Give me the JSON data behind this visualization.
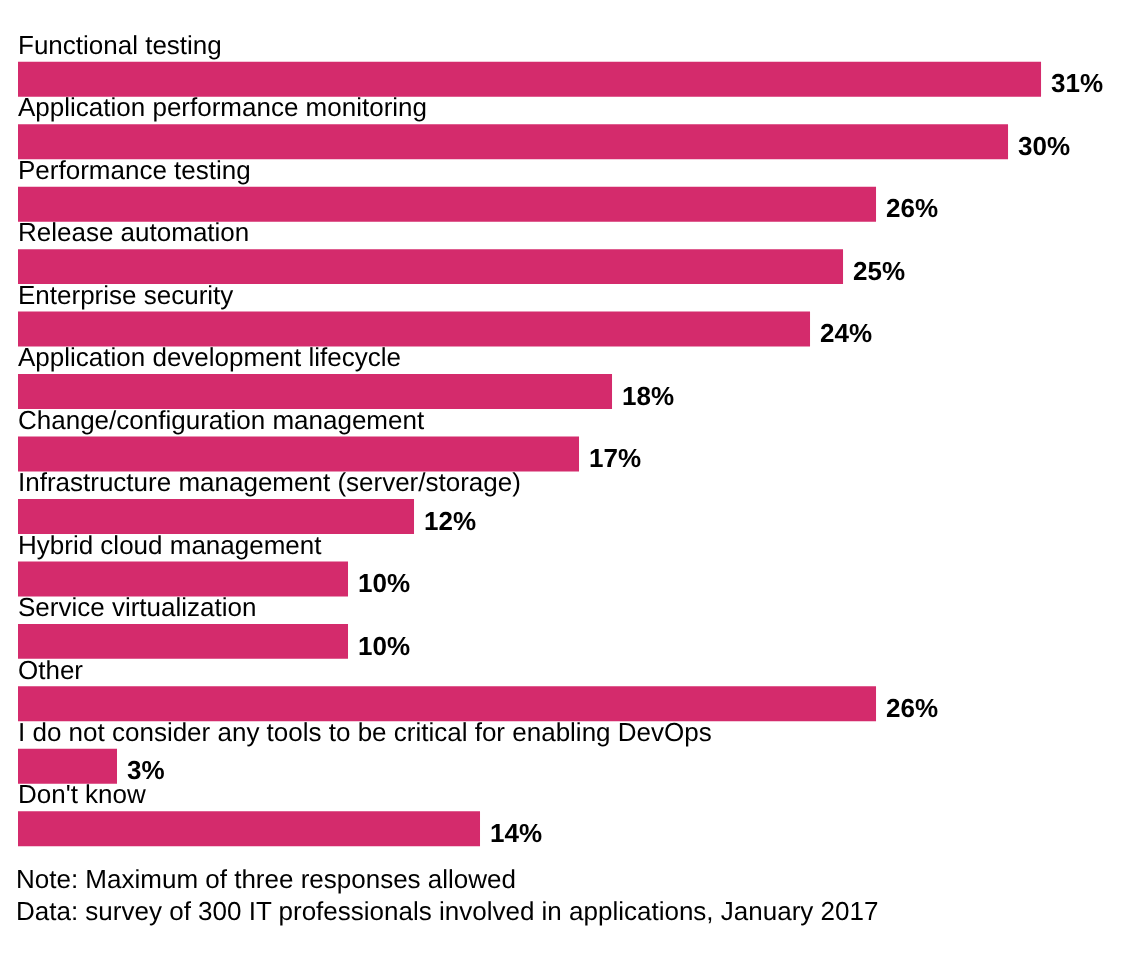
{
  "chart_data": {
    "type": "bar",
    "orientation": "horizontal",
    "categories": [
      "Functional testing",
      "Application performance monitoring",
      "Performance testing",
      "Release automation",
      "Enterprise security",
      "Application development lifecycle",
      "Change/configuration management",
      "Infrastructure management (server/storage)",
      "Hybrid cloud management",
      "Service virtualization",
      "Other",
      "I do not consider any tools to be critical for enabling DevOps",
      "Don't know"
    ],
    "values": [
      31,
      30,
      26,
      25,
      24,
      18,
      17,
      12,
      10,
      10,
      26,
      3,
      14
    ],
    "value_labels": [
      "31%",
      "30%",
      "26%",
      "25%",
      "24%",
      "18%",
      "17%",
      "12%",
      "10%",
      "10%",
      "26%",
      "3%",
      "14%"
    ],
    "color": "#d42b6c",
    "annotations": [
      "Note: Maximum of three responses allowed",
      "Data: survey of 300 IT professionals involved in applications, January 2017"
    ]
  }
}
